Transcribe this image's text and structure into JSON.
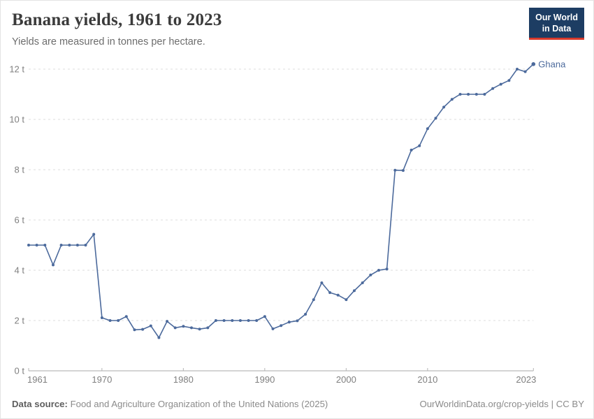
{
  "header": {
    "title": "Banana yields, 1961 to 2023",
    "subtitle": "Yields are measured in tonnes per hectare."
  },
  "logo": {
    "line1": "Our World",
    "line2": "in Data",
    "background_color": "#1d3d63",
    "stripe_color": "#d93a2b"
  },
  "chart_data": {
    "type": "line",
    "title": "Banana yields, 1961 to 2023",
    "ylabel": "tonnes per hectare",
    "xlabel": "",
    "grid": "dashed horizontal",
    "legend_position": "end-of-line label",
    "line_color": "#4c6a9c",
    "xlim": [
      1961,
      2023
    ],
    "ylim": [
      0,
      12
    ],
    "y_ticks": [
      {
        "value": 0,
        "label": "0 t"
      },
      {
        "value": 2,
        "label": "2 t"
      },
      {
        "value": 4,
        "label": "4 t"
      },
      {
        "value": 6,
        "label": "6 t"
      },
      {
        "value": 8,
        "label": "8 t"
      },
      {
        "value": 10,
        "label": "10 t"
      },
      {
        "value": 12,
        "label": "12 t"
      }
    ],
    "x_ticks": [
      {
        "value": 1961,
        "label": "1961"
      },
      {
        "value": 1970,
        "label": "1970"
      },
      {
        "value": 1980,
        "label": "1980"
      },
      {
        "value": 1990,
        "label": "1990"
      },
      {
        "value": 2000,
        "label": "2000"
      },
      {
        "value": 2010,
        "label": "2010"
      },
      {
        "value": 2023,
        "label": "2023"
      }
    ],
    "x": [
      1961,
      1962,
      1963,
      1964,
      1965,
      1966,
      1967,
      1968,
      1969,
      1970,
      1971,
      1972,
      1973,
      1974,
      1975,
      1976,
      1977,
      1978,
      1979,
      1980,
      1981,
      1982,
      1983,
      1984,
      1985,
      1986,
      1987,
      1988,
      1989,
      1990,
      1991,
      1992,
      1993,
      1994,
      1995,
      1996,
      1997,
      1998,
      1999,
      2000,
      2001,
      2002,
      2003,
      2004,
      2005,
      2006,
      2007,
      2008,
      2009,
      2010,
      2011,
      2012,
      2013,
      2014,
      2015,
      2016,
      2017,
      2018,
      2019,
      2020,
      2021,
      2022,
      2023
    ],
    "series": [
      {
        "name": "Ghana",
        "values": [
          5.0,
          5.0,
          5.0,
          4.21,
          5.0,
          5.0,
          5.0,
          5.0,
          5.43,
          2.11,
          2.0,
          2.0,
          2.16,
          1.63,
          1.65,
          1.79,
          1.32,
          1.97,
          1.71,
          1.77,
          1.71,
          1.66,
          1.71,
          2.0,
          2.0,
          2.0,
          2.0,
          2.0,
          2.0,
          2.16,
          1.67,
          1.8,
          1.94,
          1.99,
          2.25,
          2.83,
          3.5,
          3.11,
          3.01,
          2.83,
          3.19,
          3.5,
          3.81,
          4.0,
          4.05,
          7.98,
          7.97,
          8.78,
          8.95,
          9.63,
          10.05,
          10.49,
          10.8,
          11.0,
          11.0,
          11.0,
          11.0,
          11.23,
          11.4,
          11.55,
          12.0,
          11.9,
          12.2
        ]
      }
    ]
  },
  "footer": {
    "source_label": "Data source:",
    "source_text": "Food and Agriculture Organization of the United Nations (2025)",
    "url_text": "OurWorldinData.org/crop-yields",
    "separator": " | ",
    "license_text": "CC BY"
  }
}
